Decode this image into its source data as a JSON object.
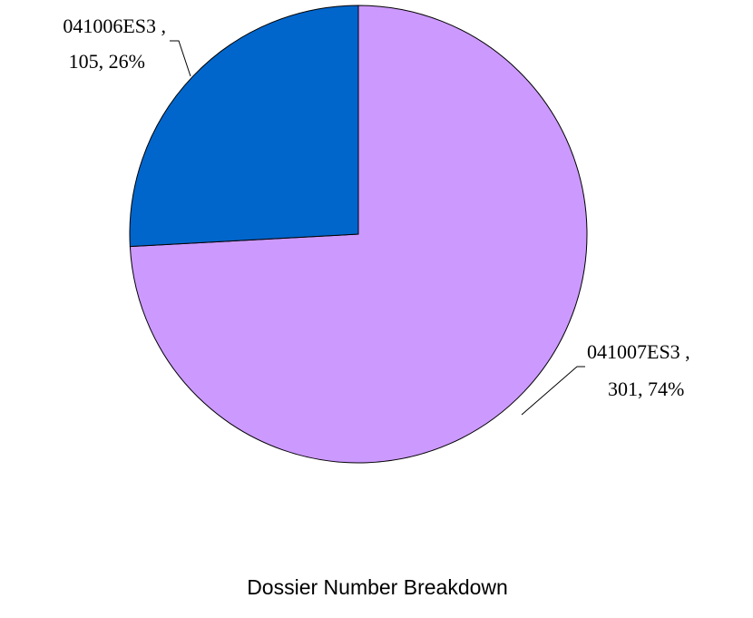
{
  "chart_data": {
    "type": "pie",
    "title": "Dossier Number Breakdown",
    "series": [
      {
        "name": "Dossier Number",
        "slices": [
          {
            "label": "041007ES3",
            "value": 301,
            "percent": "74%",
            "label_line1": "041007ES3 ,",
            "label_line2": "301, 74%",
            "color": "#CC99FF"
          },
          {
            "label": "041006ES3",
            "value": 105,
            "percent": "26%",
            "label_line1": "041006ES3 ,",
            "label_line2": "105, 26%",
            "color": "#0066CC"
          }
        ]
      }
    ],
    "start_angle_deg": 0,
    "direction": "clockwise",
    "legend": "none"
  }
}
